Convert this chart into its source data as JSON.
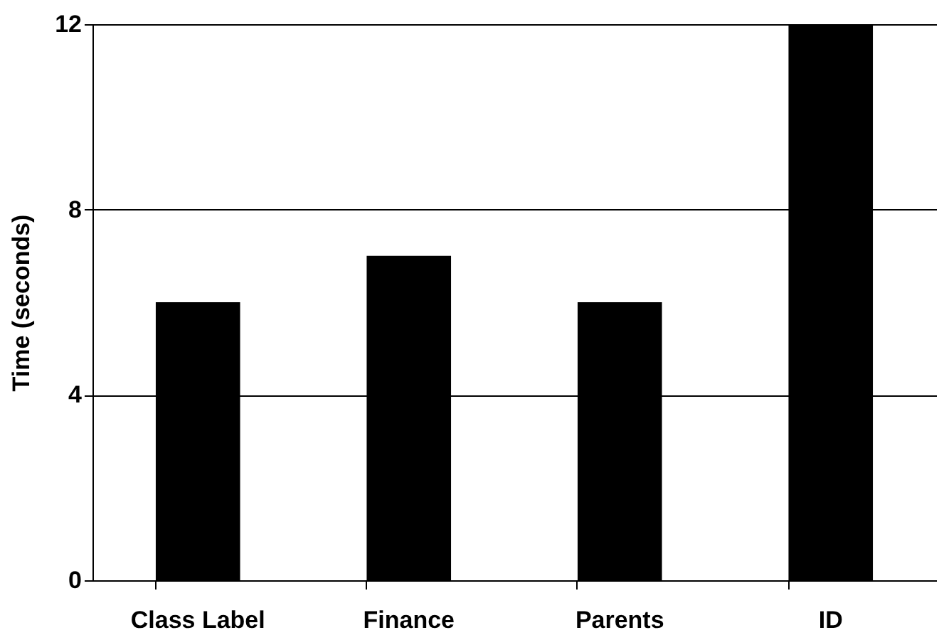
{
  "chart_data": {
    "type": "bar",
    "ylabel": "Time (seconds)",
    "categories": [
      "Class Label",
      "Finance",
      "Parents",
      "ID"
    ],
    "values": [
      6,
      7,
      6,
      12
    ],
    "color": "#000000",
    "ylim": [
      0,
      12
    ],
    "yticks": [
      0,
      4,
      8,
      12
    ],
    "grid": "y"
  }
}
